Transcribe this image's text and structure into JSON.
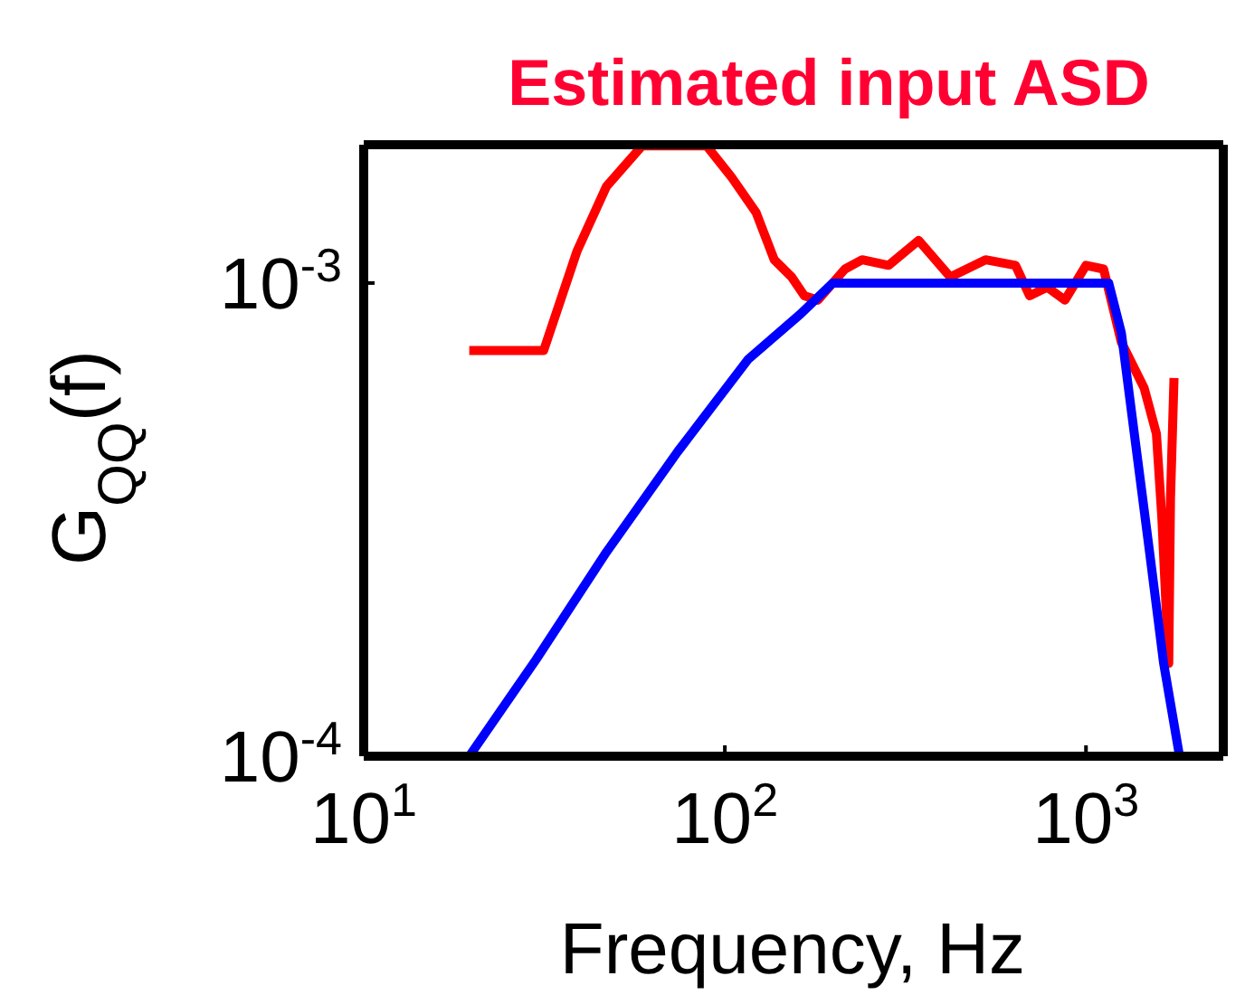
{
  "chart_data": {
    "type": "line",
    "title": "Estimated input ASD",
    "xlabel": "Frequency, Hz",
    "ylabel": "G$_{QQ}$(f)",
    "log": "xy",
    "marker": "none",
    "line_style": "solid",
    "xlim": [
      10,
      2400
    ],
    "ylim": [
      0.0001,
      0.00196
    ],
    "xticks": [
      {
        "value": 10,
        "label": "10$^{1}$"
      },
      {
        "value": 100,
        "label": "10$^{2}$"
      },
      {
        "value": 1000,
        "label": "10$^{3}$"
      }
    ],
    "yticks": [
      {
        "value": 0.0001,
        "label": "10$^{-4}$"
      },
      {
        "value": 0.001,
        "label": "10$^{-3}$"
      }
    ],
    "series": [
      {
        "color": "#ff0000",
        "x": [
          19.6,
          31.5,
          39,
          47,
          59,
          89,
          104,
          122,
          137,
          153,
          166,
          181,
          215,
          240,
          284,
          344,
          421,
          527,
          638,
          698,
          781,
          874,
          1000,
          1119,
          1253,
          1449,
          1567,
          1622,
          1695,
          1714,
          1753
        ],
        "values": [
          0.00072,
          0.00072,
          0.00117,
          0.0016,
          0.00195,
          0.00195,
          0.00168,
          0.00141,
          0.00112,
          0.00103,
          0.00094,
          0.00092,
          0.00107,
          0.00112,
          0.00109,
          0.00123,
          0.00103,
          0.00112,
          0.00109,
          0.00094,
          0.00098,
          0.00092,
          0.00109,
          0.00107,
          0.00075,
          0.0006,
          0.00048,
          0.00032,
          0.000157,
          0.00035,
          0.00063
        ]
      },
      {
        "color": "#0000ff",
        "x": [
          19.6,
          30,
          47,
          74,
          116,
          162,
          199,
          1156,
          1253,
          1371,
          1500,
          1641,
          1816
        ],
        "values": [
          0.0001,
          0.00016,
          0.00027,
          0.00044,
          0.00069,
          0.00086,
          0.001,
          0.001,
          0.000785,
          0.00046,
          0.00027,
          0.000157,
          0.0001
        ]
      }
    ]
  }
}
